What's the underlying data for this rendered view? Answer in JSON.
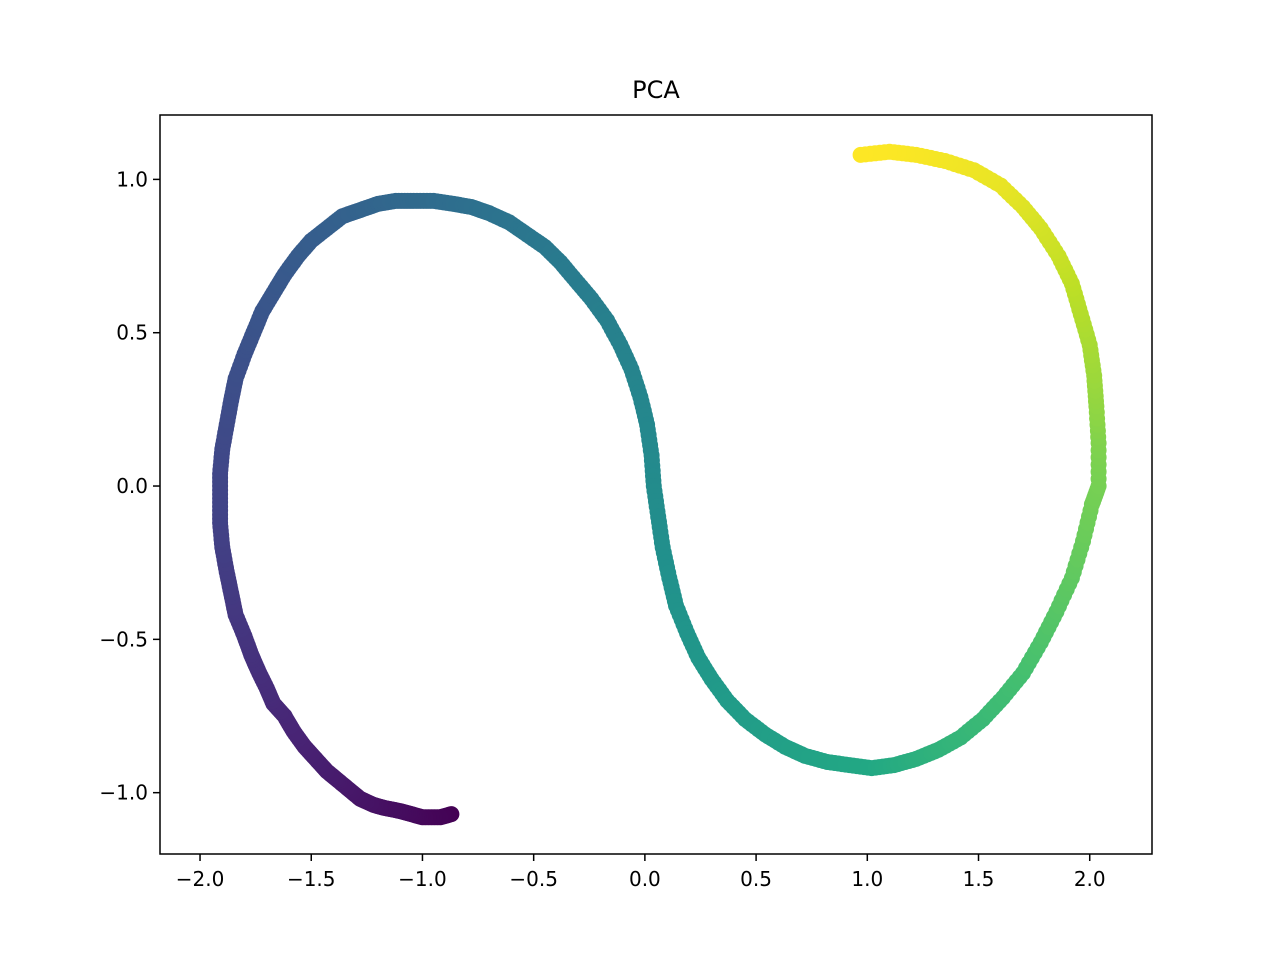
{
  "chart_data": {
    "type": "scatter",
    "title": "PCA",
    "xlabel": "",
    "ylabel": "",
    "xlim": [
      -2.18,
      2.28
    ],
    "ylim": [
      -1.2,
      1.21
    ],
    "grid": false,
    "legend": "none",
    "colormap": "viridis",
    "x_ticks": [
      -2.0,
      -1.5,
      -1.0,
      -0.5,
      0.0,
      0.5,
      1.0,
      1.5,
      2.0
    ],
    "y_ticks": [
      -1.0,
      -0.5,
      0.0,
      0.5,
      1.0
    ],
    "x_tick_labels": [
      "−2.0",
      "−1.5",
      "−1.0",
      "−0.5",
      "0.0",
      "0.5",
      "1.0",
      "1.5",
      "2.0"
    ],
    "y_tick_labels": [
      "−1.0",
      "−0.5",
      "0.0",
      "0.5",
      "1.0"
    ],
    "point_color_encoding": "position along curve (0 to 1)",
    "points": [
      {
        "x": -0.87,
        "y": -1.07,
        "t": 0.0
      },
      {
        "x": -0.92,
        "y": -1.08,
        "t": 0.01
      },
      {
        "x": -1.0,
        "y": -1.08,
        "t": 0.02
      },
      {
        "x": -1.05,
        "y": -1.07,
        "t": 0.03
      },
      {
        "x": -1.1,
        "y": -1.06,
        "t": 0.04
      },
      {
        "x": -1.17,
        "y": -1.05,
        "t": 0.05
      },
      {
        "x": -1.22,
        "y": -1.04,
        "t": 0.06
      },
      {
        "x": -1.28,
        "y": -1.02,
        "t": 0.07
      },
      {
        "x": -1.33,
        "y": -0.99,
        "t": 0.08
      },
      {
        "x": -1.38,
        "y": -0.96,
        "t": 0.09
      },
      {
        "x": -1.43,
        "y": -0.93,
        "t": 0.1
      },
      {
        "x": -1.48,
        "y": -0.89,
        "t": 0.11
      },
      {
        "x": -1.53,
        "y": -0.85,
        "t": 0.12
      },
      {
        "x": -1.58,
        "y": -0.8,
        "t": 0.13
      },
      {
        "x": -1.62,
        "y": -0.75,
        "t": 0.14
      },
      {
        "x": -1.67,
        "y": -0.71,
        "t": 0.15
      },
      {
        "x": -1.7,
        "y": -0.66,
        "t": 0.16
      },
      {
        "x": -1.74,
        "y": -0.6,
        "t": 0.17
      },
      {
        "x": -1.77,
        "y": -0.55,
        "t": 0.18
      },
      {
        "x": -1.8,
        "y": -0.49,
        "t": 0.19
      },
      {
        "x": -1.84,
        "y": -0.42,
        "t": 0.2
      },
      {
        "x": -1.86,
        "y": -0.35,
        "t": 0.21
      },
      {
        "x": -1.88,
        "y": -0.28,
        "t": 0.22
      },
      {
        "x": -1.9,
        "y": -0.2,
        "t": 0.23
      },
      {
        "x": -1.91,
        "y": -0.12,
        "t": 0.24
      },
      {
        "x": -1.91,
        "y": -0.04,
        "t": 0.25
      },
      {
        "x": -1.91,
        "y": 0.04,
        "t": 0.26
      },
      {
        "x": -1.9,
        "y": 0.12,
        "t": 0.27
      },
      {
        "x": -1.88,
        "y": 0.2,
        "t": 0.28
      },
      {
        "x": -1.86,
        "y": 0.28,
        "t": 0.29
      },
      {
        "x": -1.84,
        "y": 0.35,
        "t": 0.3
      },
      {
        "x": -1.8,
        "y": 0.43,
        "t": 0.31
      },
      {
        "x": -1.76,
        "y": 0.5,
        "t": 0.32
      },
      {
        "x": -1.72,
        "y": 0.57,
        "t": 0.33
      },
      {
        "x": -1.67,
        "y": 0.63,
        "t": 0.34
      },
      {
        "x": -1.62,
        "y": 0.69,
        "t": 0.35
      },
      {
        "x": -1.56,
        "y": 0.75,
        "t": 0.36
      },
      {
        "x": -1.5,
        "y": 0.8,
        "t": 0.37
      },
      {
        "x": -1.43,
        "y": 0.84,
        "t": 0.38
      },
      {
        "x": -1.36,
        "y": 0.88,
        "t": 0.39
      },
      {
        "x": -1.28,
        "y": 0.9,
        "t": 0.4
      },
      {
        "x": -1.2,
        "y": 0.92,
        "t": 0.41
      },
      {
        "x": -1.12,
        "y": 0.93,
        "t": 0.42
      },
      {
        "x": -1.04,
        "y": 0.93,
        "t": 0.43
      },
      {
        "x": -0.95,
        "y": 0.93,
        "t": 0.44
      },
      {
        "x": -0.86,
        "y": 0.92,
        "t": 0.45
      },
      {
        "x": -0.78,
        "y": 0.91,
        "t": 0.46
      },
      {
        "x": -0.7,
        "y": 0.89,
        "t": 0.47
      },
      {
        "x": -0.61,
        "y": 0.86,
        "t": 0.48
      },
      {
        "x": -0.53,
        "y": 0.82,
        "t": 0.49
      },
      {
        "x": -0.45,
        "y": 0.78,
        "t": 0.5
      },
      {
        "x": -0.38,
        "y": 0.73,
        "t": 0.51
      },
      {
        "x": -0.31,
        "y": 0.67,
        "t": 0.52
      },
      {
        "x": -0.24,
        "y": 0.61,
        "t": 0.53
      },
      {
        "x": -0.17,
        "y": 0.54,
        "t": 0.54
      },
      {
        "x": -0.11,
        "y": 0.46,
        "t": 0.55
      },
      {
        "x": -0.06,
        "y": 0.38,
        "t": 0.56
      },
      {
        "x": -0.02,
        "y": 0.29,
        "t": 0.57
      },
      {
        "x": 0.01,
        "y": 0.2,
        "t": 0.58
      },
      {
        "x": 0.03,
        "y": 0.1,
        "t": 0.59
      },
      {
        "x": 0.04,
        "y": 0.0,
        "t": 0.6
      },
      {
        "x": 0.06,
        "y": -0.1,
        "t": 0.61
      },
      {
        "x": 0.08,
        "y": -0.2,
        "t": 0.62
      },
      {
        "x": 0.11,
        "y": -0.3,
        "t": 0.63
      },
      {
        "x": 0.14,
        "y": -0.39,
        "t": 0.64
      },
      {
        "x": 0.19,
        "y": -0.48,
        "t": 0.65
      },
      {
        "x": 0.24,
        "y": -0.56,
        "t": 0.66
      },
      {
        "x": 0.3,
        "y": -0.63,
        "t": 0.67
      },
      {
        "x": 0.37,
        "y": -0.7,
        "t": 0.68
      },
      {
        "x": 0.45,
        "y": -0.76,
        "t": 0.69
      },
      {
        "x": 0.54,
        "y": -0.81,
        "t": 0.7
      },
      {
        "x": 0.63,
        "y": -0.85,
        "t": 0.71
      },
      {
        "x": 0.72,
        "y": -0.88,
        "t": 0.72
      },
      {
        "x": 0.82,
        "y": -0.9,
        "t": 0.73
      },
      {
        "x": 0.92,
        "y": -0.91,
        "t": 0.74
      },
      {
        "x": 1.02,
        "y": -0.92,
        "t": 0.75
      },
      {
        "x": 1.12,
        "y": -0.91,
        "t": 0.76
      },
      {
        "x": 1.22,
        "y": -0.89,
        "t": 0.77
      },
      {
        "x": 1.32,
        "y": -0.86,
        "t": 0.78
      },
      {
        "x": 1.42,
        "y": -0.82,
        "t": 0.79
      },
      {
        "x": 1.52,
        "y": -0.76,
        "t": 0.8
      },
      {
        "x": 1.61,
        "y": -0.69,
        "t": 0.81
      },
      {
        "x": 1.7,
        "y": -0.61,
        "t": 0.82
      },
      {
        "x": 1.78,
        "y": -0.51,
        "t": 0.83
      },
      {
        "x": 1.85,
        "y": -0.41,
        "t": 0.84
      },
      {
        "x": 1.92,
        "y": -0.3,
        "t": 0.85
      },
      {
        "x": 1.97,
        "y": -0.18,
        "t": 0.86
      },
      {
        "x": 2.01,
        "y": -0.06,
        "t": 0.87
      },
      {
        "x": 2.04,
        "y": 0.0,
        "t": 0.875
      },
      {
        "x": 2.04,
        "y": 0.14,
        "t": 0.885
      },
      {
        "x": 2.03,
        "y": 0.26,
        "t": 0.9
      },
      {
        "x": 2.02,
        "y": 0.36,
        "t": 0.91
      },
      {
        "x": 2.0,
        "y": 0.46,
        "t": 0.92
      },
      {
        "x": 1.96,
        "y": 0.56,
        "t": 0.93
      },
      {
        "x": 1.92,
        "y": 0.66,
        "t": 0.94
      },
      {
        "x": 1.86,
        "y": 0.75,
        "t": 0.95
      },
      {
        "x": 1.78,
        "y": 0.84,
        "t": 0.96
      },
      {
        "x": 1.7,
        "y": 0.91,
        "t": 0.97
      },
      {
        "x": 1.6,
        "y": 0.98,
        "t": 0.98
      },
      {
        "x": 1.48,
        "y": 1.03,
        "t": 0.985
      },
      {
        "x": 1.35,
        "y": 1.06,
        "t": 0.99
      },
      {
        "x": 1.22,
        "y": 1.08,
        "t": 0.995
      },
      {
        "x": 1.1,
        "y": 1.09,
        "t": 0.998
      },
      {
        "x": 0.97,
        "y": 1.08,
        "t": 1.0
      }
    ]
  }
}
